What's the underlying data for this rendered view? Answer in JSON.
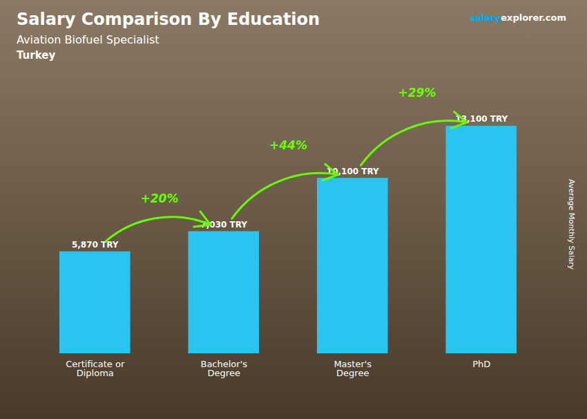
{
  "chart_data": {
    "type": "bar",
    "title": "Salary Comparison By Education",
    "subtitle": "Aviation Biofuel Specialist",
    "country": "Turkey",
    "watermark": [
      "salary",
      "explorer",
      ".com"
    ],
    "ylabel": "Average Monthly Salary",
    "categories": [
      "Certificate or\nDiploma",
      "Bachelor's\nDegree",
      "Master's\nDegree",
      "PhD"
    ],
    "values": [
      5870,
      7030,
      10100,
      13100
    ],
    "value_labels": [
      "5,870 TRY",
      "7,030 TRY",
      "10,100 TRY",
      "13,100 TRY"
    ],
    "data_labels": true,
    "color": "#29c5f0",
    "ylim": [
      0,
      16000
    ],
    "yticks": [],
    "tick_labels": "x",
    "grid": false,
    "annotations": [
      {
        "text": "+20%",
        "from": "Certificate or\nDiploma",
        "to": "Bachelor's\nDegree",
        "color": "#66ff00"
      },
      {
        "text": "+44%",
        "from": "Bachelor's\nDegree",
        "to": "Master's\nDegree",
        "color": "#66ff00"
      },
      {
        "text": "+29%",
        "from": "Master's\nDegree",
        "to": "PhD",
        "color": "#66ff00"
      }
    ]
  }
}
